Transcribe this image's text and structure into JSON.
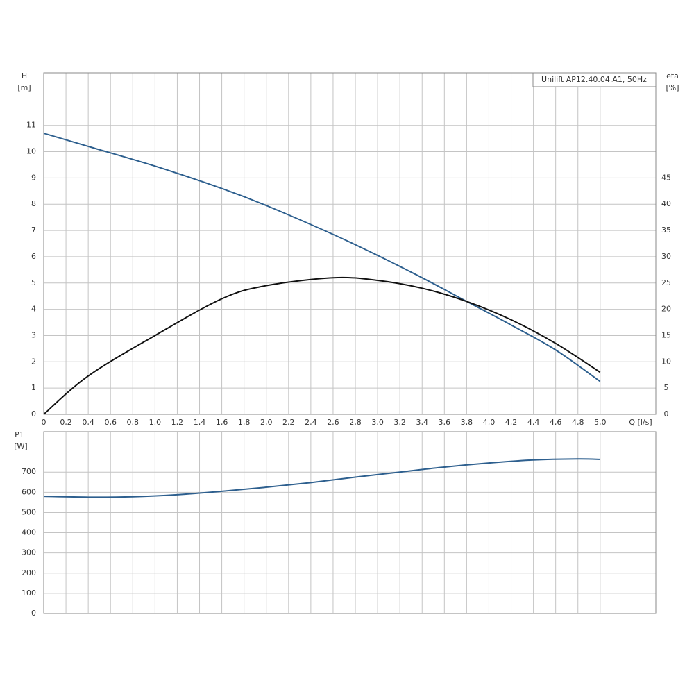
{
  "chart_data": [
    {
      "type": "line",
      "title": "Unilift AP12.40.04.A1, 50Hz",
      "ylabel": "H",
      "ylabel_unit": "[m]",
      "y2label": "eta",
      "y2label_unit": "[%]",
      "xlabel": "Q [l/s]",
      "x": [
        0,
        0.4,
        1.0,
        1.6,
        2.0,
        2.6,
        3.0,
        3.4,
        3.8,
        4.2,
        4.6,
        5.0
      ],
      "series": [
        {
          "color": "#2d5f8e",
          "axis": "y",
          "values": [
            10.7,
            10.2,
            9.45,
            8.6,
            7.95,
            6.85,
            6.05,
            5.2,
            4.3,
            3.4,
            2.45,
            1.25
          ]
        },
        {
          "color": "#111111",
          "axis": "y2",
          "values": [
            0,
            7.3,
            15,
            22,
            24.5,
            26,
            25.5,
            24,
            21.5,
            18,
            13.5,
            8
          ]
        }
      ],
      "xlim": [
        0,
        5.5
      ],
      "xticks": [
        0,
        {
          "value": 0.2,
          "label": "0,2"
        },
        {
          "value": 0.4,
          "label": "0,4"
        },
        {
          "value": 0.6,
          "label": "0,6"
        },
        {
          "value": 0.8,
          "label": "0,8"
        },
        {
          "value": 1.0,
          "label": "1,0"
        },
        {
          "value": 1.2,
          "label": "1,2"
        },
        {
          "value": 1.4,
          "label": "1,4"
        },
        {
          "value": 1.6,
          "label": "1,6"
        },
        {
          "value": 1.8,
          "label": "1,8"
        },
        {
          "value": 2.0,
          "label": "2,0"
        },
        {
          "value": 2.2,
          "label": "2,2"
        },
        {
          "value": 2.4,
          "label": "2,4"
        },
        {
          "value": 2.6,
          "label": "2,6"
        },
        {
          "value": 2.8,
          "label": "2,8"
        },
        {
          "value": 3.0,
          "label": "3,0"
        },
        {
          "value": 3.2,
          "label": "3,2"
        },
        {
          "value": 3.4,
          "label": "3,4"
        },
        {
          "value": 3.6,
          "label": "3,6"
        },
        {
          "value": 3.8,
          "label": "3,8"
        },
        {
          "value": 4.0,
          "label": "4,0"
        },
        {
          "value": 4.2,
          "label": "4,2"
        },
        {
          "value": 4.4,
          "label": "4,4"
        },
        {
          "value": 4.6,
          "label": "4,6"
        },
        {
          "value": 4.8,
          "label": "4,8"
        },
        {
          "value": 5.0,
          "label": "5,0"
        }
      ],
      "ylim": [
        0,
        13
      ],
      "yticks": [
        0,
        1,
        2,
        3,
        4,
        5,
        6,
        7,
        8,
        9,
        10,
        11
      ],
      "y2lim": [
        0,
        65
      ],
      "y2ticks": [
        0,
        5,
        10,
        15,
        20,
        25,
        30,
        35,
        40,
        45
      ],
      "grid": true
    },
    {
      "type": "line",
      "ylabel": "P1",
      "ylabel_unit": "[W]",
      "x": [
        0,
        0.4,
        0.8,
        1.2,
        1.6,
        2.0,
        2.4,
        2.8,
        3.2,
        3.6,
        4.0,
        4.4,
        4.8,
        5.0
      ],
      "series": [
        {
          "color": "#2d5f8e",
          "values": [
            580,
            576,
            578,
            588,
            605,
            625,
            648,
            675,
            700,
            725,
            745,
            760,
            765,
            763
          ]
        }
      ],
      "xlim": [
        0,
        5.5
      ],
      "ylim": [
        0,
        900
      ],
      "yticks": [
        0,
        100,
        200,
        300,
        400,
        500,
        600,
        700
      ],
      "grid": true
    }
  ]
}
